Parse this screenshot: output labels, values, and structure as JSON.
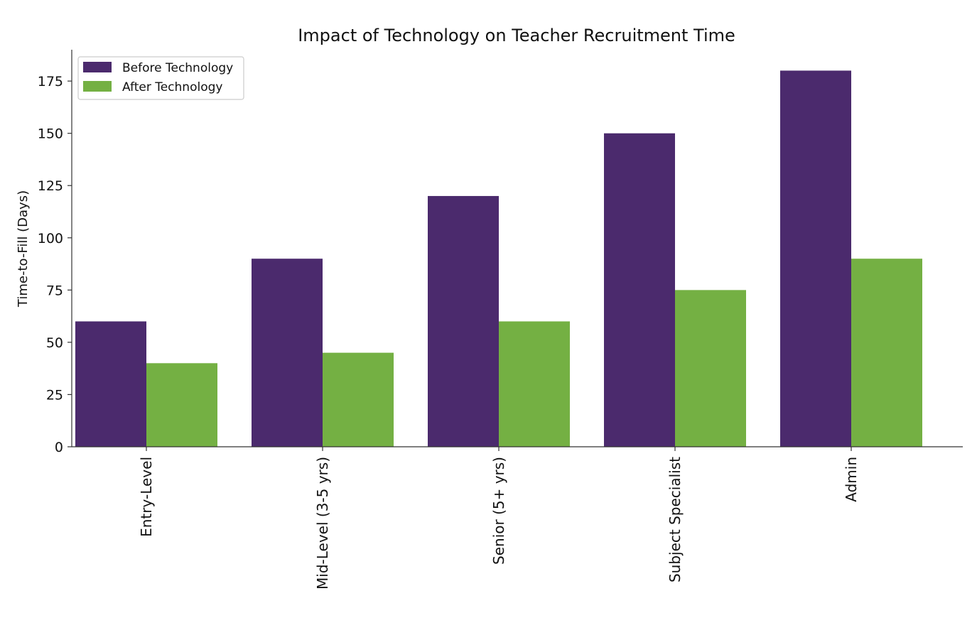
{
  "chart_data": {
    "type": "bar",
    "title": "Impact of Technology on Teacher Recruitment Time",
    "xlabel": "",
    "ylabel": "Time-to-Fill (Days)",
    "ylim": [
      0,
      190
    ],
    "yticks": [
      0,
      25,
      50,
      75,
      100,
      125,
      150,
      175
    ],
    "categories": [
      "Entry-Level",
      "Mid-Level (3-5 yrs)",
      "Senior (5+ yrs)",
      "Subject Specialist",
      "Admin"
    ],
    "series": [
      {
        "name": "Before Technology",
        "color": "#4b2a6d",
        "values": [
          60,
          90,
          120,
          150,
          180
        ]
      },
      {
        "name": "After Technology",
        "color": "#74b043",
        "values": [
          40,
          45,
          60,
          75,
          90
        ]
      }
    ],
    "grid": false,
    "legend_position": "top-left",
    "x_tick_rotation": "vertical"
  }
}
